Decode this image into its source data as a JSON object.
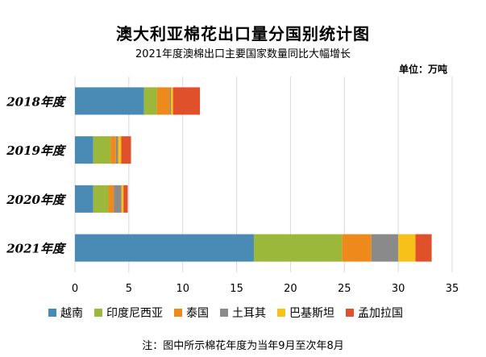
{
  "chart_data": {
    "type": "bar",
    "orientation": "horizontal",
    "stacked": true,
    "title": "澳大利亚棉花出口量分国别统计图",
    "subtitle": "2021年度澳棉出口主要国家数量同比大幅增长",
    "unit": "单位：万吨",
    "note": "注：图中所示棉花年度为当年9月至次年8月",
    "categories": [
      "2018年度",
      "2019年度",
      "2020年度",
      "2021年度"
    ],
    "xlim": [
      0,
      35
    ],
    "xticks": [
      0,
      5,
      10,
      15,
      20,
      25,
      30,
      35
    ],
    "grid": true,
    "legend_position": "bottom",
    "series": [
      {
        "name": "越南",
        "color": "#4a8bb5",
        "values": [
          6.4,
          1.7,
          1.7,
          16.6
        ]
      },
      {
        "name": "印度尼西亚",
        "color": "#9bb83a",
        "values": [
          1.2,
          1.6,
          1.4,
          8.2
        ]
      },
      {
        "name": "泰国",
        "color": "#ee8a1b",
        "values": [
          1.2,
          0.5,
          0.5,
          2.7
        ]
      },
      {
        "name": "土耳其",
        "color": "#8a8a8a",
        "values": [
          0.1,
          0.2,
          0.7,
          2.5
        ]
      },
      {
        "name": "巴基斯坦",
        "color": "#f7c11a",
        "values": [
          0.2,
          0.3,
          0.2,
          1.6
        ]
      },
      {
        "name": "孟加拉国",
        "color": "#e0502a",
        "values": [
          2.5,
          0.9,
          0.4,
          1.5
        ]
      }
    ]
  }
}
